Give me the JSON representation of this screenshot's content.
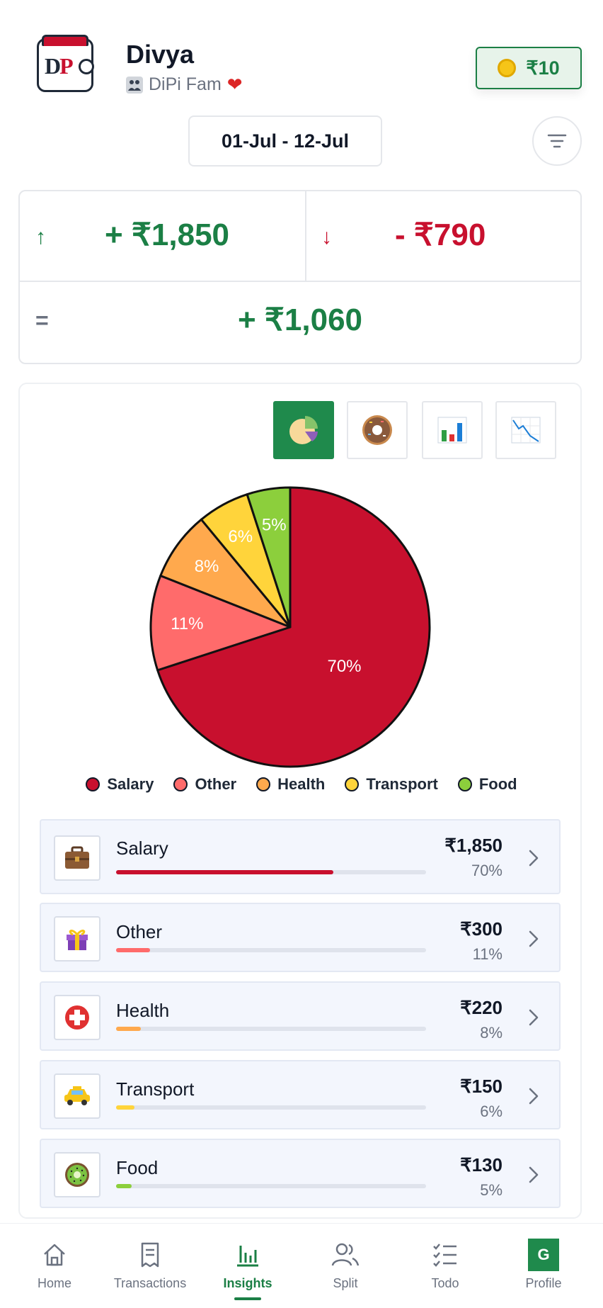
{
  "header": {
    "user_name": "Divya",
    "group_name": "DiPi Fam",
    "coins": "₹10"
  },
  "date_range": "01-Jul - 12-Jul",
  "summary": {
    "income": "+ ₹1,850",
    "expense": "- ₹790",
    "net": "+ ₹1,060"
  },
  "chart_types": [
    "pie",
    "donut",
    "bar",
    "line"
  ],
  "active_chart_type": "pie",
  "chart_data": {
    "type": "pie",
    "categories": [
      "Salary",
      "Other",
      "Health",
      "Transport",
      "Food"
    ],
    "values": [
      70,
      11,
      8,
      6,
      5
    ],
    "labels": [
      "70%",
      "11%",
      "8%",
      "6%",
      "5%"
    ],
    "colors": [
      "#c8102e",
      "#ff6b6b",
      "#ffa94d",
      "#ffd43b",
      "#8ccf3c"
    ],
    "legend_position": "bottom"
  },
  "categories": [
    {
      "name": "Salary",
      "amount": "₹1,850",
      "percent": "70%",
      "fraction": 0.7,
      "color": "#c8102e",
      "icon": "briefcase-icon"
    },
    {
      "name": "Other",
      "amount": "₹300",
      "percent": "11%",
      "fraction": 0.11,
      "color": "#ff6b6b",
      "icon": "gift-icon"
    },
    {
      "name": "Health",
      "amount": "₹220",
      "percent": "8%",
      "fraction": 0.08,
      "color": "#ffa94d",
      "icon": "medical-cross-icon"
    },
    {
      "name": "Transport",
      "amount": "₹150",
      "percent": "6%",
      "fraction": 0.06,
      "color": "#ffd43b",
      "icon": "taxi-icon"
    },
    {
      "name": "Food",
      "amount": "₹130",
      "percent": "5%",
      "fraction": 0.05,
      "color": "#8ccf3c",
      "icon": "kiwi-icon"
    }
  ],
  "nav": {
    "home": "Home",
    "transactions": "Transactions",
    "insights": "Insights",
    "split": "Split",
    "todo": "Todo",
    "profile": "Profile",
    "profile_initial": "G",
    "active": "insights"
  }
}
